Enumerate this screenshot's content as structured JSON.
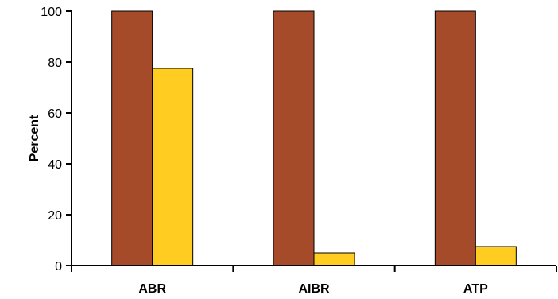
{
  "chart_data": {
    "type": "bar",
    "title": "",
    "xlabel": "",
    "ylabel": "Percent",
    "ylim": [
      0,
      100
    ],
    "yticks": [
      0,
      20,
      40,
      60,
      80,
      100
    ],
    "ytick_labels": [
      "0",
      "20",
      "40",
      "60",
      "80",
      "100"
    ],
    "categories": [
      "ABR",
      "AIBR",
      "ATP"
    ],
    "series": [
      {
        "color": "#a64b2a",
        "values": [
          100,
          100,
          100
        ]
      },
      {
        "color": "#ffcc22",
        "values": [
          77.5,
          5,
          7.5
        ]
      }
    ],
    "grid": false,
    "legend": "none"
  }
}
